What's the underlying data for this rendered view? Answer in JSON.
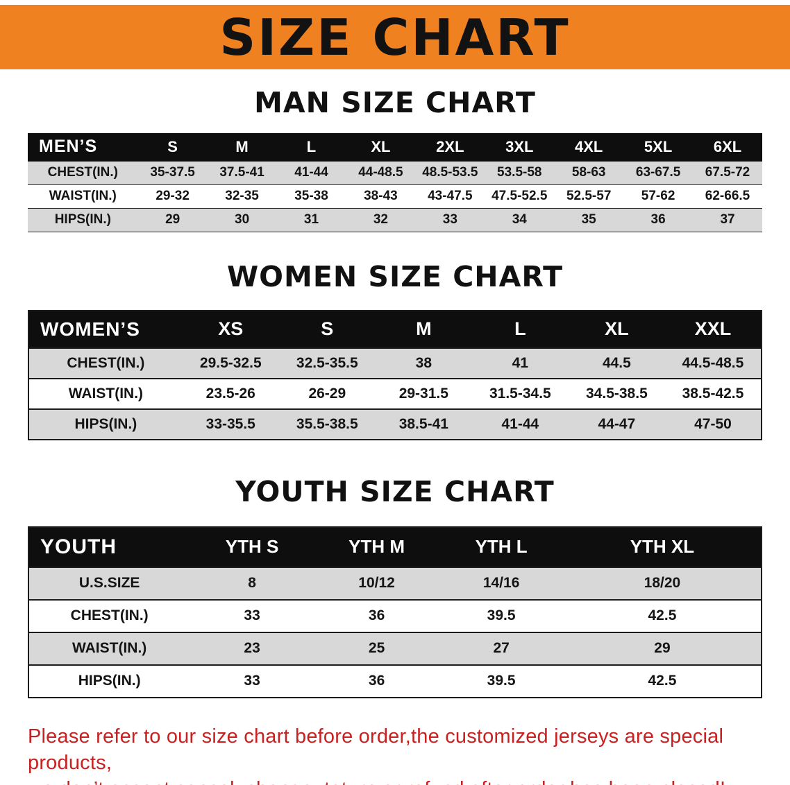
{
  "banner": {
    "title": "SIZE CHART"
  },
  "colors": {
    "banner_orange": "#f08120",
    "header_black": "#0e0e0e",
    "row_shade_gray": "#d8d8d8",
    "disclaimer_red": "#c82121"
  },
  "sections": [
    {
      "id": "men",
      "heading": "MAN SIZE CHART",
      "table": {
        "header": [
          "MEN’S",
          "S",
          "M",
          "L",
          "XL",
          "2XL",
          "3XL",
          "4XL",
          "5XL",
          "6XL"
        ],
        "rows": [
          {
            "label": "CHEST(IN.)",
            "values": [
              "35-37.5",
              "37.5-41",
              "41-44",
              "44-48.5",
              "48.5-53.5",
              "53.5-58",
              "58-63",
              "63-67.5",
              "67.5-72"
            ]
          },
          {
            "label": "WAIST(IN.)",
            "values": [
              "29-32",
              "32-35",
              "35-38",
              "38-43",
              "43-47.5",
              "47.5-52.5",
              "52.5-57",
              "57-62",
              "62-66.5"
            ]
          },
          {
            "label": "HIPS(IN.)",
            "values": [
              "29",
              "30",
              "31",
              "32",
              "33",
              "34",
              "35",
              "36",
              "37"
            ]
          }
        ]
      }
    },
    {
      "id": "women",
      "heading": "WOMEN SIZE CHART",
      "table": {
        "header": [
          "WOMEN’S",
          "XS",
          "S",
          "M",
          "L",
          "XL",
          "XXL"
        ],
        "rows": [
          {
            "label": "CHEST(IN.)",
            "values": [
              "29.5-32.5",
              "32.5-35.5",
              "38",
              "41",
              "44.5",
              "44.5-48.5"
            ]
          },
          {
            "label": "WAIST(IN.)",
            "values": [
              "23.5-26",
              "26-29",
              "29-31.5",
              "31.5-34.5",
              "34.5-38.5",
              "38.5-42.5"
            ]
          },
          {
            "label": "HIPS(IN.)",
            "values": [
              "33-35.5",
              "35.5-38.5",
              "38.5-41",
              "41-44",
              "44-47",
              "47-50"
            ]
          }
        ]
      }
    },
    {
      "id": "youth",
      "heading": "YOUTH SIZE CHART",
      "table": {
        "header": [
          "YOUTH",
          "YTH S",
          "YTH M",
          "YTH L",
          "YTH XL"
        ],
        "rows": [
          {
            "label": "U.S.SIZE",
            "values": [
              "8",
              "10/12",
              "14/16",
              "18/20"
            ]
          },
          {
            "label": "CHEST(IN.)",
            "values": [
              "33",
              "36",
              "39.5",
              "42.5"
            ]
          },
          {
            "label": "WAIST(IN.)",
            "values": [
              "23",
              "25",
              "27",
              "29"
            ]
          },
          {
            "label": "HIPS(IN.)",
            "values": [
              "33",
              "36",
              "39.5",
              "42.5"
            ]
          }
        ]
      }
    }
  ],
  "disclaimer": {
    "line1": "Please refer to our size chart before order,the customized jerseys are special products,",
    "line2": "we don’t accept cancel, change, teturn or refund after order has been placed!"
  }
}
